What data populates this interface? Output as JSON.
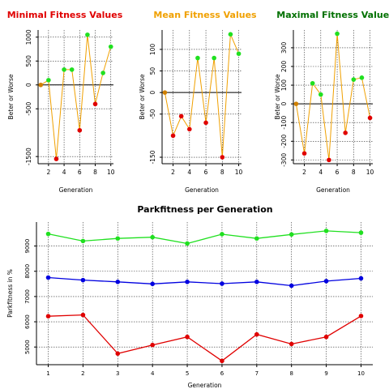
{
  "chart_data": [
    {
      "type": "line",
      "title": "Minimal Fitness Values",
      "title_color": "#e00000",
      "xlabel": "Generation",
      "ylabel": "Beter or Worse",
      "x": [
        1,
        2,
        3,
        4,
        5,
        6,
        7,
        8,
        9,
        10
      ],
      "xticks": [
        "2",
        "4",
        "6",
        "8",
        "10"
      ],
      "yticks": [
        "-1500",
        "-500",
        "0",
        "500",
        "1000"
      ],
      "ylim": [
        -1650,
        1150
      ],
      "grid": true,
      "line_color": "#f0a000",
      "values": [
        0,
        100,
        -1550,
        320,
        320,
        -950,
        1050,
        -400,
        250,
        800
      ],
      "point_colors": [
        "#d08000",
        "#20e020",
        "#e00000",
        "#20e020",
        "#20e020",
        "#e00000",
        "#20e020",
        "#e00000",
        "#20e020",
        "#20e020"
      ]
    },
    {
      "type": "line",
      "title": "Mean Fitness Values",
      "title_color": "#f0a000",
      "xlabel": "Generation",
      "ylabel": "Beter or Worse",
      "x": [
        1,
        2,
        3,
        4,
        5,
        6,
        7,
        8,
        9,
        10
      ],
      "xticks": [
        "2",
        "4",
        "6",
        "8",
        "10"
      ],
      "yticks": [
        "-150",
        "-50",
        "0",
        "50",
        "100"
      ],
      "ylim": [
        -165,
        145
      ],
      "grid": true,
      "line_color": "#f0a000",
      "values": [
        0,
        -100,
        -55,
        -85,
        80,
        -70,
        80,
        -150,
        135,
        90
      ],
      "point_colors": [
        "#d08000",
        "#e00000",
        "#e00000",
        "#e00000",
        "#20e020",
        "#e00000",
        "#20e020",
        "#e00000",
        "#20e020",
        "#20e020"
      ]
    },
    {
      "type": "line",
      "title": "Maximal Fitness Values",
      "title_color": "#007000",
      "xlabel": "Generation",
      "ylabel": "Beter or Worse",
      "x": [
        1,
        2,
        3,
        4,
        5,
        6,
        7,
        8,
        9,
        10
      ],
      "xticks": [
        "2",
        "4",
        "6",
        "8",
        "10"
      ],
      "yticks": [
        "-300",
        "-200",
        "-100",
        "0",
        "100",
        "200",
        "300"
      ],
      "ylim": [
        -320,
        395
      ],
      "grid": true,
      "line_color": "#f0a000",
      "values": [
        0,
        -265,
        110,
        50,
        -300,
        375,
        -155,
        130,
        140,
        -75
      ],
      "point_colors": [
        "#d08000",
        "#e00000",
        "#20e020",
        "#20e020",
        "#e00000",
        "#20e020",
        "#e00000",
        "#20e020",
        "#20e020",
        "#e00000"
      ]
    },
    {
      "type": "line",
      "title": "Parkfitness per Generation",
      "title_color": "#000000",
      "xlabel": "Generation",
      "ylabel": "Parkfitness in %",
      "x": [
        1,
        2,
        3,
        4,
        5,
        6,
        7,
        8,
        9,
        10
      ],
      "xticks": [
        "1",
        "2",
        "3",
        "4",
        "5",
        "6",
        "7",
        "8",
        "9",
        "10"
      ],
      "yticks": [
        "5000",
        "6000",
        "7000",
        "8000",
        "9000"
      ],
      "ylim": [
        4300,
        9950
      ],
      "grid": true,
      "series": [
        {
          "color": "#20e020",
          "values": [
            9480,
            9200,
            9300,
            9350,
            9100,
            9470,
            9300,
            9460,
            9600,
            9530
          ]
        },
        {
          "color": "#0000e0",
          "values": [
            7750,
            7650,
            7580,
            7500,
            7580,
            7510,
            7580,
            7430,
            7610,
            7720
          ]
        },
        {
          "color": "#e00000",
          "values": [
            6220,
            6270,
            4740,
            5080,
            5400,
            4450,
            5500,
            5120,
            5400,
            6230
          ]
        }
      ]
    }
  ]
}
